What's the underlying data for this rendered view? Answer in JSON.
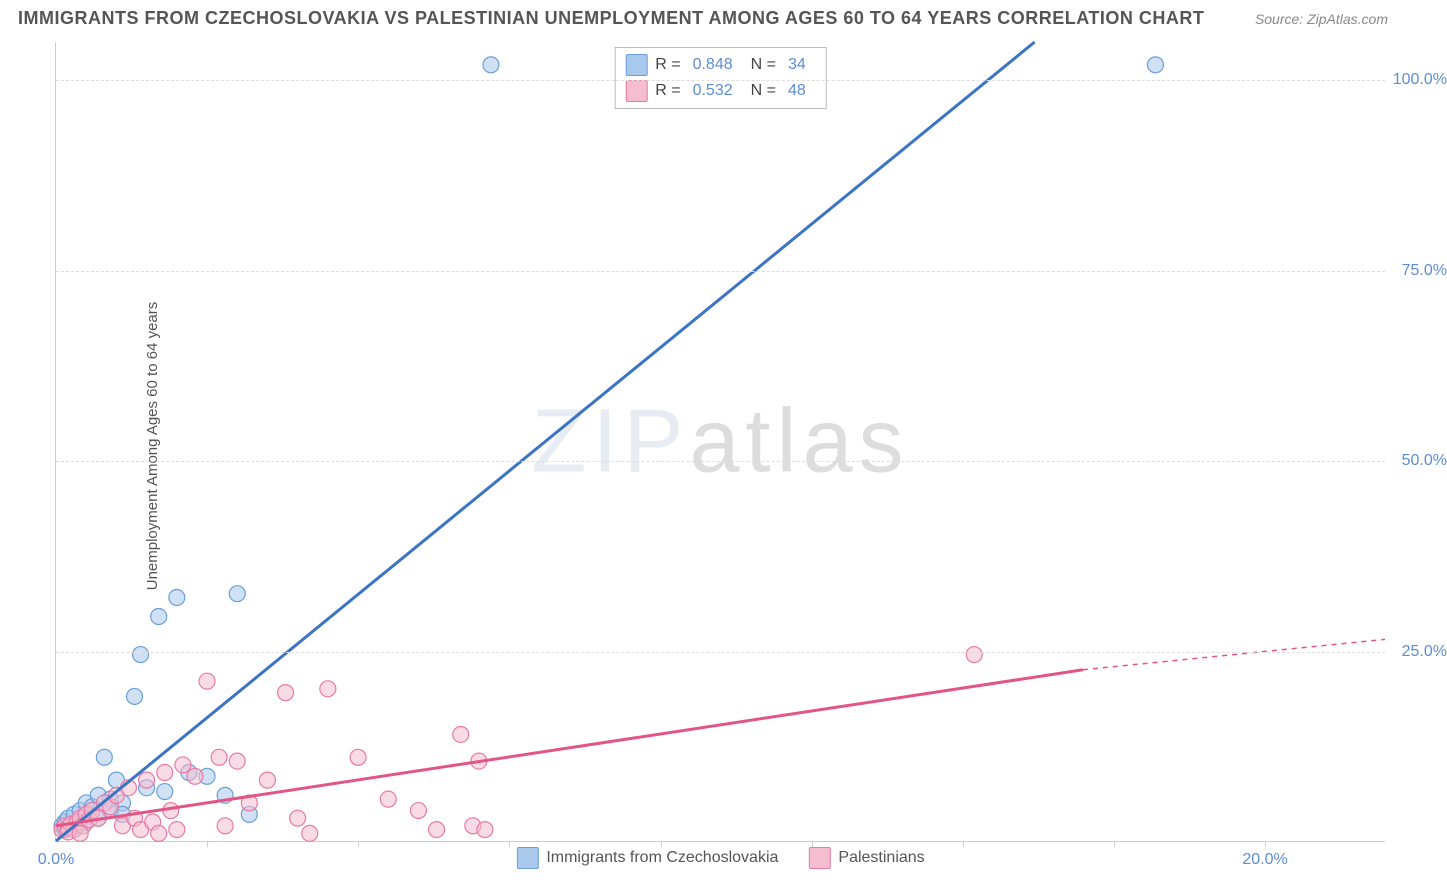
{
  "title": "IMMIGRANTS FROM CZECHOSLOVAKIA VS PALESTINIAN UNEMPLOYMENT AMONG AGES 60 TO 64 YEARS CORRELATION CHART",
  "source_label": "Source:",
  "source_value": "ZipAtlas.com",
  "y_axis_label": "Unemployment Among Ages 60 to 64 years",
  "watermark": "ZIPatlas",
  "chart": {
    "type": "scatter",
    "background_color": "#ffffff",
    "grid_color": "#dddddd",
    "axis_color": "#cccccc",
    "x_range": [
      0,
      22
    ],
    "y_range": [
      0,
      105
    ],
    "y_ticks": [
      {
        "value": 25,
        "label": "25.0%"
      },
      {
        "value": 50,
        "label": "50.0%"
      },
      {
        "value": 75,
        "label": "75.0%"
      },
      {
        "value": 100,
        "label": "100.0%"
      }
    ],
    "x_ticks": [
      {
        "value": 0,
        "label": "0.0%"
      },
      {
        "value": 5,
        "label": ""
      },
      {
        "value": 10,
        "label": ""
      },
      {
        "value": 15,
        "label": ""
      },
      {
        "value": 20,
        "label": "20.0%"
      }
    ],
    "x_tick_marks": [
      2.5,
      5,
      7.5,
      10,
      12.5,
      15,
      17.5,
      20
    ],
    "tick_label_color": "#5b8dd6",
    "tick_label_fontsize": 16,
    "title_fontsize": 18,
    "title_color": "#555555",
    "marker_radius": 8,
    "marker_opacity": 0.55,
    "line_width": 3
  },
  "series": [
    {
      "name": "Immigrants from Czechoslovakia",
      "color_fill": "#a9c9ec",
      "color_stroke": "#6a9fd8",
      "line_color": "#3b74c4",
      "r_value": "0.848",
      "n_value": "34",
      "trend_line": {
        "x1": 0,
        "y1": 0,
        "x2": 16.2,
        "y2": 105
      },
      "points": [
        [
          0.1,
          2.0
        ],
        [
          0.15,
          2.5
        ],
        [
          0.2,
          3.0
        ],
        [
          0.25,
          2.0
        ],
        [
          0.3,
          3.5
        ],
        [
          0.35,
          2.0
        ],
        [
          0.4,
          4.0
        ],
        [
          0.45,
          3.0
        ],
        [
          0.5,
          5.0
        ],
        [
          0.6,
          4.5
        ],
        [
          0.7,
          6.0
        ],
        [
          0.8,
          11.0
        ],
        [
          0.9,
          5.5
        ],
        [
          1.0,
          8.0
        ],
        [
          1.1,
          5.0
        ],
        [
          1.3,
          19.0
        ],
        [
          1.4,
          24.5
        ],
        [
          1.5,
          7.0
        ],
        [
          1.7,
          29.5
        ],
        [
          1.8,
          6.5
        ],
        [
          2.0,
          32.0
        ],
        [
          2.2,
          9.0
        ],
        [
          2.5,
          8.5
        ],
        [
          2.8,
          6.0
        ],
        [
          3.0,
          32.5
        ],
        [
          3.2,
          3.5
        ],
        [
          7.2,
          102.0
        ],
        [
          18.2,
          102.0
        ],
        [
          0.15,
          1.5
        ],
        [
          0.3,
          1.8
        ],
        [
          0.5,
          2.5
        ],
        [
          0.7,
          3.0
        ],
        [
          0.9,
          4.0
        ],
        [
          1.1,
          3.5
        ]
      ]
    },
    {
      "name": "Palestinians",
      "color_fill": "#f4bdd0",
      "color_stroke": "#e77ba5",
      "line_color": "#e35583",
      "r_value": "0.532",
      "n_value": "48",
      "trend_line": {
        "x1": 0,
        "y1": 2.0,
        "x2": 17,
        "y2": 22.5
      },
      "trend_dashed_extension": {
        "x1": 17,
        "y1": 22.5,
        "x2": 22,
        "y2": 26.5
      },
      "points": [
        [
          0.1,
          1.5
        ],
        [
          0.15,
          2.0
        ],
        [
          0.2,
          1.8
        ],
        [
          0.25,
          2.2
        ],
        [
          0.3,
          1.5
        ],
        [
          0.35,
          2.5
        ],
        [
          0.4,
          3.0
        ],
        [
          0.45,
          2.0
        ],
        [
          0.5,
          3.5
        ],
        [
          0.55,
          2.8
        ],
        [
          0.6,
          4.0
        ],
        [
          0.7,
          3.0
        ],
        [
          0.8,
          5.0
        ],
        [
          0.9,
          4.5
        ],
        [
          1.0,
          6.0
        ],
        [
          1.1,
          2.0
        ],
        [
          1.2,
          7.0
        ],
        [
          1.3,
          3.0
        ],
        [
          1.4,
          1.5
        ],
        [
          1.5,
          8.0
        ],
        [
          1.6,
          2.5
        ],
        [
          1.7,
          1.0
        ],
        [
          1.8,
          9.0
        ],
        [
          1.9,
          4.0
        ],
        [
          2.0,
          1.5
        ],
        [
          2.1,
          10.0
        ],
        [
          2.3,
          8.5
        ],
        [
          2.5,
          21.0
        ],
        [
          2.7,
          11.0
        ],
        [
          2.8,
          2.0
        ],
        [
          3.0,
          10.5
        ],
        [
          3.2,
          5.0
        ],
        [
          3.5,
          8.0
        ],
        [
          3.8,
          19.5
        ],
        [
          4.0,
          3.0
        ],
        [
          4.2,
          1.0
        ],
        [
          4.5,
          20.0
        ],
        [
          5.0,
          11.0
        ],
        [
          5.5,
          5.5
        ],
        [
          6.0,
          4.0
        ],
        [
          6.3,
          1.5
        ],
        [
          6.7,
          14.0
        ],
        [
          7.0,
          10.5
        ],
        [
          6.9,
          2.0
        ],
        [
          7.1,
          1.5
        ],
        [
          15.2,
          24.5
        ],
        [
          0.2,
          1.2
        ],
        [
          0.4,
          1.0
        ]
      ]
    }
  ],
  "legend_top": {
    "r_label": "R =",
    "n_label": "N ="
  },
  "legend_bottom": [
    {
      "label": "Immigrants from Czechoslovakia",
      "fill": "#a9c9ec",
      "stroke": "#6a9fd8"
    },
    {
      "label": "Palestinians",
      "fill": "#f4bdd0",
      "stroke": "#e77ba5"
    }
  ]
}
